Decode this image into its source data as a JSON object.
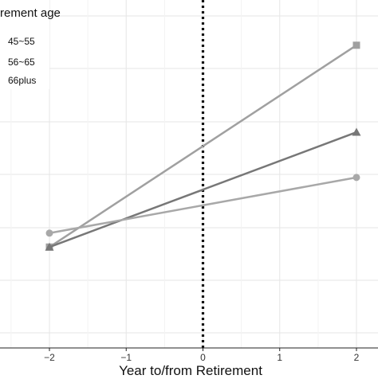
{
  "chart_data": {
    "type": "line",
    "title": "",
    "xlabel": "Year to/from Retirement",
    "ylabel": "",
    "x": [
      -2,
      2
    ],
    "xticks": [
      -2,
      -1,
      0,
      1,
      2
    ],
    "xtick_labels": [
      "−2",
      "−1",
      "0",
      "1",
      "2"
    ],
    "xlim": [
      -3.05,
      2.05
    ],
    "ylim": [
      0,
      1
    ],
    "grid": true,
    "reference_line": {
      "x": 0,
      "style": "dotted"
    },
    "legend": {
      "title": "rement age",
      "placement": "top-left",
      "entries": [
        "45~55",
        "56~65",
        "66plus"
      ]
    },
    "series": [
      {
        "name": "45~55",
        "marker": "square",
        "color": "#a0a0a0",
        "values": [
          0.29,
          0.87
        ]
      },
      {
        "name": "56~65",
        "marker": "triangle",
        "color": "#777777",
        "values": [
          0.29,
          0.62
        ]
      },
      {
        "name": "66plus",
        "marker": "circle",
        "color": "#a8a8a8",
        "values": [
          0.33,
          0.49
        ]
      }
    ]
  }
}
